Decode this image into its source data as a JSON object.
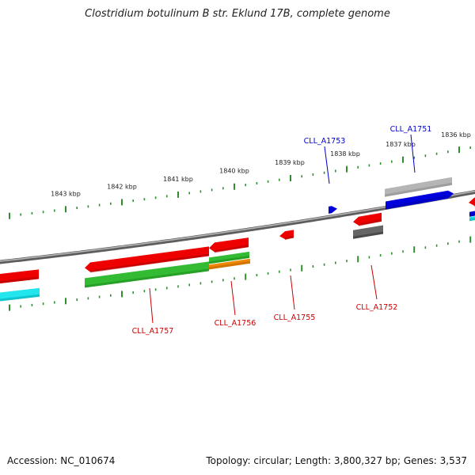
{
  "title": "Clostridium botulinum B str. Eklund 17B, complete genome",
  "footer": {
    "accession": "Accession: NC_010674",
    "summary": "Topology: circular; Length: 3,800,327 bp; Genes: 3,537"
  },
  "colors": {
    "backbone": "#7a7a7a",
    "tick": "#2f8f2f",
    "label_plus": "#0000cc",
    "label_minus": "#cc0000",
    "cds_red": "#ee0000",
    "cds_blue": "#0000dd",
    "cds_gray": "#b5b5b5",
    "cds_darkgray": "#666666",
    "gene_green": "#33bb33",
    "gene_orange": "#ee8800",
    "gene_cyan": "#22e5ee",
    "text": "#222222"
  },
  "scale_labels": [
    "1843 kbp",
    "1842 kbp",
    "1841 kbp",
    "1840 kbp",
    "1839 kbp",
    "1838 kbp",
    "1837 kbp",
    "1836 kbp"
  ],
  "gene_labels": [
    {
      "text": "CLL_A1753",
      "strand": "plus"
    },
    {
      "text": "CLL_A1751",
      "strand": "plus"
    },
    {
      "text": "CLL_A1757",
      "strand": "minus"
    },
    {
      "text": "CLL_A1756",
      "strand": "minus"
    },
    {
      "text": "CLL_A1755",
      "strand": "minus"
    },
    {
      "text": "CLL_A1752",
      "strand": "minus"
    }
  ]
}
